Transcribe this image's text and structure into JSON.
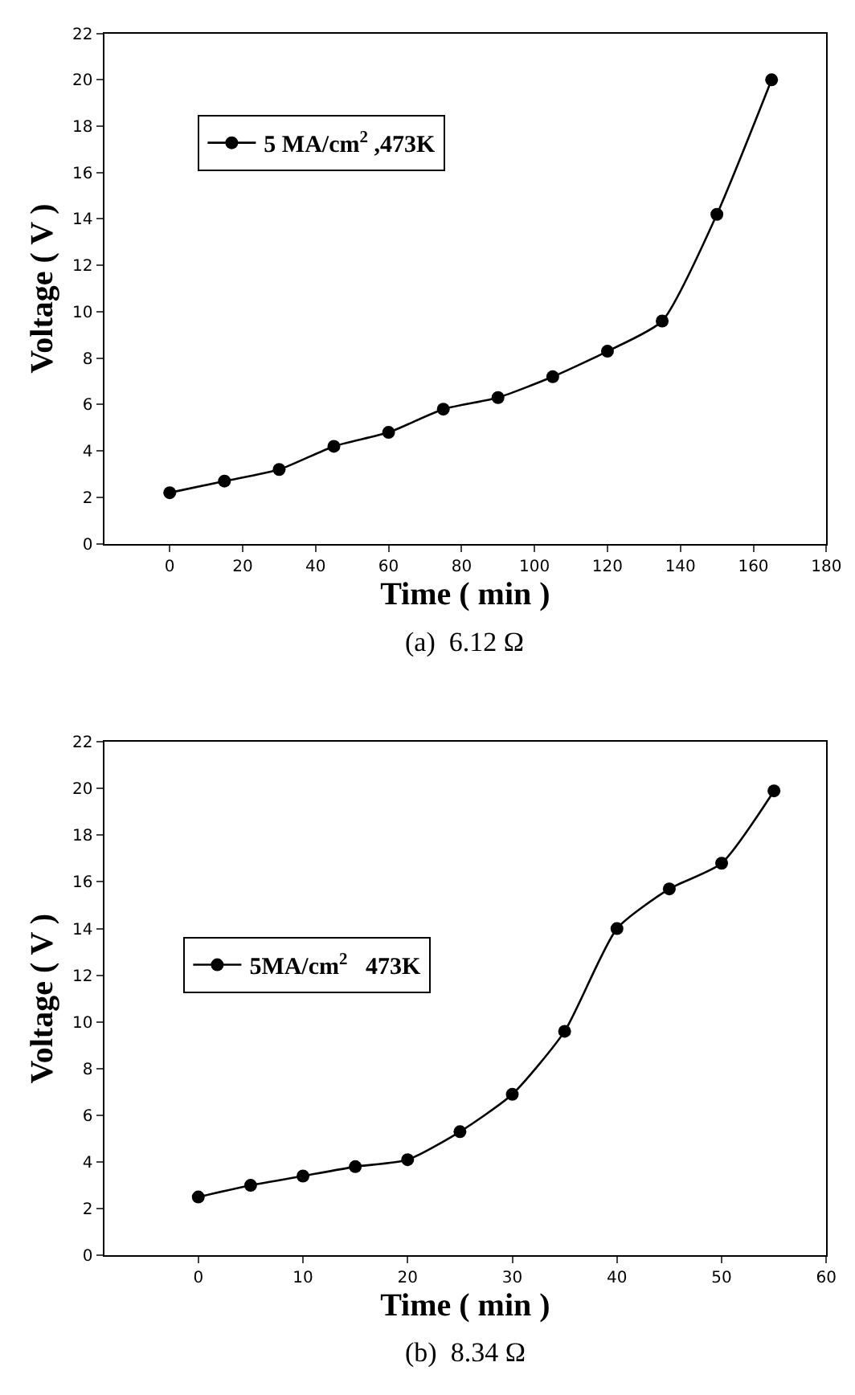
{
  "chart_data": [
    {
      "type": "line",
      "xlabel": "Time ( min )",
      "ylabel": "Voltage ( V )",
      "annotations": [
        "(a)  6.12 Ω"
      ],
      "x": [
        0,
        15,
        30,
        45,
        60,
        75,
        90,
        105,
        120,
        135,
        150,
        165
      ],
      "series": [
        {
          "name": "5 MA/cm$^{2}$ ,473K",
          "color": "#000000",
          "values": [
            2.2,
            2.7,
            3.2,
            4.2,
            4.8,
            5.8,
            6.3,
            7.2,
            8.3,
            9.6,
            14.2,
            20.0
          ]
        }
      ],
      "xlim": [
        -18,
        180
      ],
      "xticks": [
        0,
        20,
        40,
        60,
        80,
        100,
        120,
        140,
        160,
        180
      ],
      "ylim": [
        0,
        22
      ],
      "yticks": [
        0,
        2,
        4,
        6,
        8,
        10,
        12,
        14,
        16,
        18,
        20,
        22
      ],
      "legend": "top left",
      "marker": "circle",
      "line_style": "solid"
    },
    {
      "type": "line",
      "xlabel": "Time ( min )",
      "ylabel": "Voltage ( V )",
      "annotations": [
        "(b)  8.34 Ω"
      ],
      "x": [
        0,
        5,
        10,
        15,
        20,
        25,
        30,
        35,
        40,
        45,
        50,
        55
      ],
      "series": [
        {
          "name": "5MA/cm$^{2}$   473K",
          "color": "#000000",
          "values": [
            2.5,
            3.0,
            3.4,
            3.8,
            4.1,
            5.3,
            6.9,
            9.6,
            14.0,
            15.7,
            16.8,
            19.9
          ]
        }
      ],
      "xlim": [
        -9,
        60
      ],
      "xticks": [
        0,
        10,
        20,
        30,
        40,
        50,
        60
      ],
      "ylim": [
        0,
        22
      ],
      "yticks": [
        0,
        2,
        4,
        6,
        8,
        10,
        12,
        14,
        16,
        18,
        20,
        22
      ],
      "legend": "left",
      "marker": "circle",
      "line_style": "solid"
    }
  ]
}
